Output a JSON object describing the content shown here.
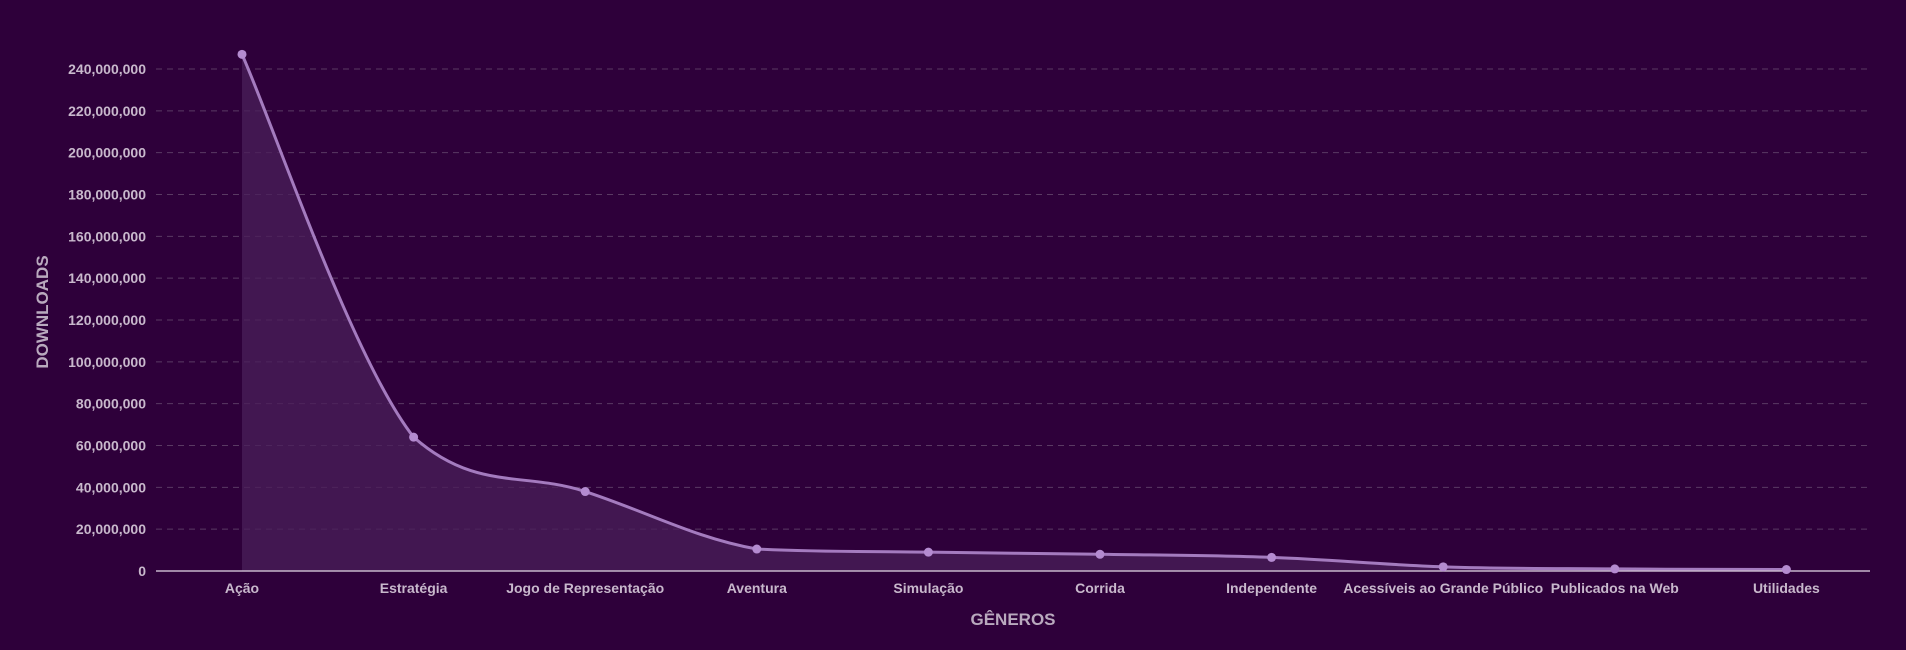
{
  "chart_data": {
    "type": "area",
    "title": "",
    "xlabel": "GÊNEROS",
    "ylabel": "DOWNLOADS",
    "categories": [
      "Ação",
      "Estratégia",
      "Jogo de Representação",
      "Aventura",
      "Simulação",
      "Corrida",
      "Independente",
      "Acessíveis ao Grande Público",
      "Publicados na Web",
      "Utilidades"
    ],
    "series": [
      {
        "values": [
          247000000,
          64000000,
          38000000,
          10500000,
          9000000,
          8000000,
          6500000,
          2000000,
          1000000,
          700000
        ]
      }
    ],
    "ylim": [
      0,
      250000000
    ],
    "yticks": [
      0,
      20000000,
      40000000,
      60000000,
      80000000,
      100000000,
      120000000,
      140000000,
      160000000,
      180000000,
      200000000,
      220000000,
      240000000
    ],
    "grid": true,
    "legend": "none",
    "colors": {
      "background": "#2e003a",
      "line": "#a47bbf",
      "area": "#4a1f5a",
      "point": "#b48bd0",
      "text": "#c8b8cc"
    }
  }
}
